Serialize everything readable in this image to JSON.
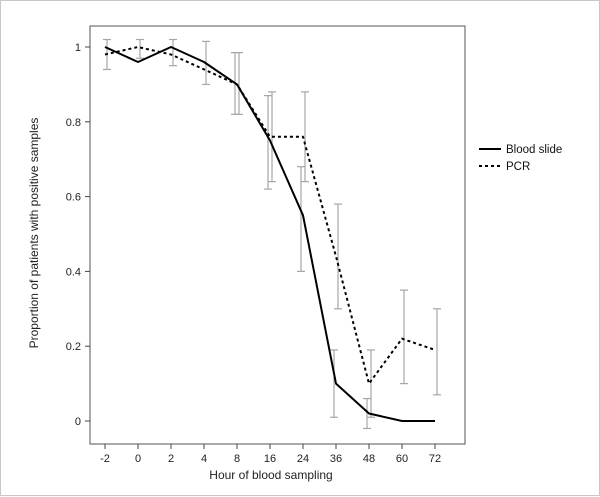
{
  "chart_data": {
    "type": "line",
    "title": "",
    "xlabel": "Hour of blood sampling",
    "ylabel": "Proportion of patients with positive samples",
    "categories": [
      "-2",
      "0",
      "2",
      "4",
      "8",
      "16",
      "24",
      "36",
      "48",
      "60",
      "72"
    ],
    "ylim": [
      0,
      1
    ],
    "yticks": [
      "0",
      "0.2",
      "0.4",
      "0.6",
      "0.8",
      "1"
    ],
    "grid": false,
    "legend_position": "right",
    "series": [
      {
        "name": "Blood slide",
        "line_style": "solid",
        "color": "#000000",
        "values": [
          1.0,
          0.96,
          1.0,
          0.96,
          0.9,
          0.75,
          0.55,
          0.1,
          0.02,
          0.0,
          0.0
        ],
        "error_low": [
          null,
          null,
          null,
          null,
          0.82,
          0.62,
          0.4,
          0.01,
          -0.02,
          null,
          null
        ],
        "error_high": [
          null,
          null,
          null,
          null,
          0.985,
          0.87,
          0.68,
          0.19,
          0.06,
          null,
          null
        ]
      },
      {
        "name": "PCR",
        "line_style": "dotted",
        "color": "#000000",
        "values": [
          0.98,
          1.0,
          0.98,
          0.94,
          0.9,
          0.76,
          0.76,
          0.44,
          0.1,
          0.22,
          0.19
        ],
        "error_low": [
          0.94,
          0.97,
          0.95,
          0.9,
          0.82,
          0.64,
          0.64,
          0.3,
          0.01,
          0.1,
          0.07
        ],
        "error_high": [
          1.02,
          1.02,
          1.02,
          1.015,
          0.985,
          0.88,
          0.88,
          0.58,
          0.19,
          0.35,
          0.3
        ]
      }
    ],
    "error_bar_color": "#a6a6a6"
  }
}
